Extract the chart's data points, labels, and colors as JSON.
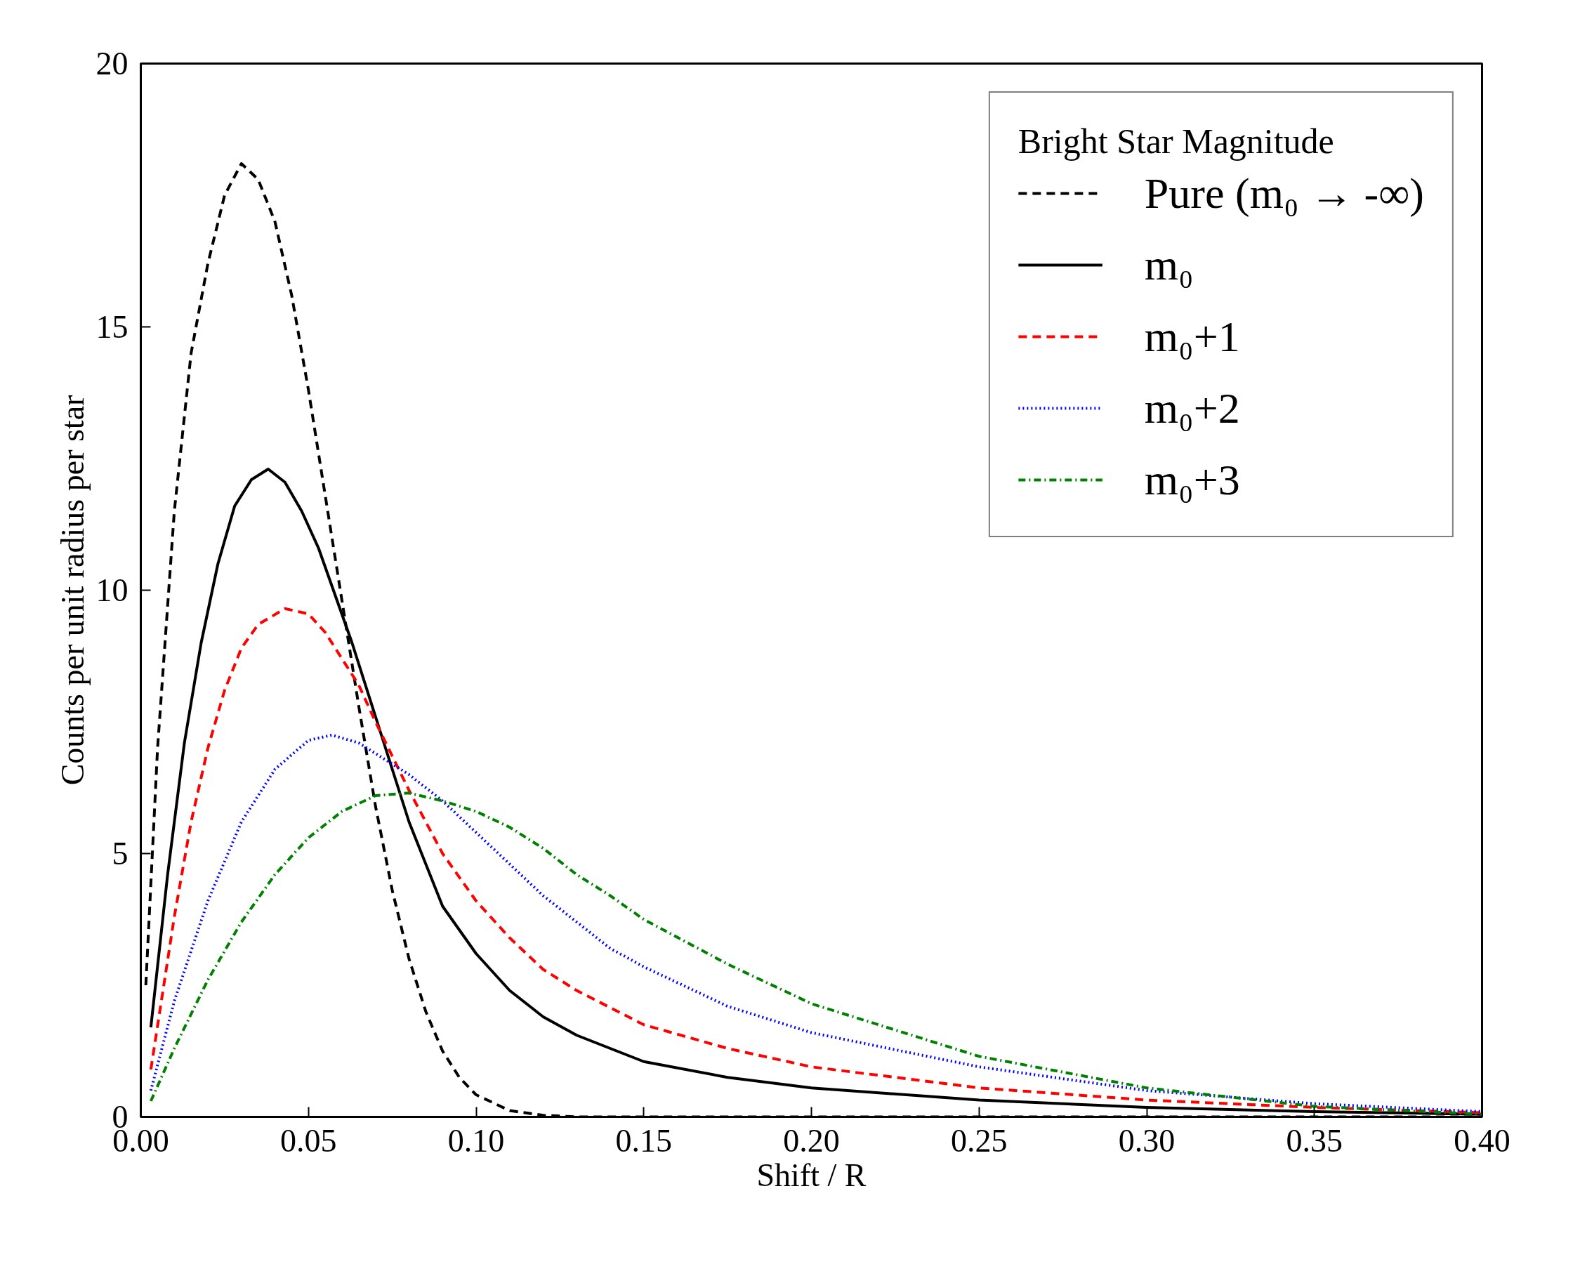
{
  "chart_data": {
    "type": "line",
    "xlabel": "Shift / R",
    "ylabel": "Counts per unit radius per star",
    "legend_title": "Bright Star Magnitude",
    "legend": "top right",
    "grid": false,
    "xlim": [
      0,
      0.4
    ],
    "ylim": [
      0,
      20
    ],
    "xticks": [
      {
        "value": 0,
        "label": "0.00"
      },
      {
        "value": 0.05,
        "label": "0.05"
      },
      {
        "value": 0.1,
        "label": "0.10"
      },
      {
        "value": 0.15,
        "label": "0.15"
      },
      {
        "value": 0.2,
        "label": "0.20"
      },
      {
        "value": 0.25,
        "label": "0.25"
      },
      {
        "value": 0.3,
        "label": "0.30"
      },
      {
        "value": 0.35,
        "label": "0.35"
      },
      {
        "value": 0.4,
        "label": "0.40"
      }
    ],
    "yticks": [
      0,
      5,
      10,
      15,
      20
    ],
    "series": [
      {
        "name": "Pure (m₀ → -∞)",
        "color": "#000000",
        "line_style": "dashed",
        "x": [
          0.0015,
          0.005,
          0.01,
          0.015,
          0.02,
          0.025,
          0.03,
          0.035,
          0.04,
          0.045,
          0.05,
          0.055,
          0.06,
          0.065,
          0.07,
          0.075,
          0.08,
          0.085,
          0.09,
          0.095,
          0.1,
          0.11,
          0.12,
          0.13,
          0.2,
          0.3,
          0.4
        ],
        "values": [
          2.5,
          7,
          11.5,
          14.5,
          16.2,
          17.5,
          18.1,
          17.8,
          17.0,
          15.6,
          13.8,
          11.8,
          9.8,
          7.8,
          5.9,
          4.3,
          3.0,
          2.0,
          1.25,
          0.75,
          0.42,
          0.12,
          0.03,
          0,
          0,
          0,
          0
        ]
      },
      {
        "name": "m₀",
        "color": "#000000",
        "line_style": "solid",
        "x": [
          0.003,
          0.008,
          0.013,
          0.018,
          0.023,
          0.028,
          0.033,
          0.038,
          0.043,
          0.048,
          0.053,
          0.058,
          0.063,
          0.07,
          0.08,
          0.09,
          0.1,
          0.11,
          0.12,
          0.13,
          0.15,
          0.175,
          0.2,
          0.25,
          0.3,
          0.35,
          0.4
        ],
        "values": [
          1.7,
          4.6,
          7.1,
          9.0,
          10.5,
          11.6,
          12.1,
          12.3,
          12.05,
          11.5,
          10.8,
          9.9,
          9.0,
          7.6,
          5.6,
          4.0,
          3.1,
          2.4,
          1.9,
          1.55,
          1.05,
          0.75,
          0.55,
          0.32,
          0.18,
          0.1,
          0.05
        ]
      },
      {
        "name": "m₀+1",
        "color": "#ff0000",
        "line_style": "dashed",
        "x": [
          0.003,
          0.01,
          0.015,
          0.02,
          0.025,
          0.03,
          0.035,
          0.043,
          0.05,
          0.055,
          0.06,
          0.065,
          0.07,
          0.08,
          0.09,
          0.1,
          0.11,
          0.12,
          0.13,
          0.15,
          0.175,
          0.2,
          0.25,
          0.3,
          0.35,
          0.4
        ],
        "values": [
          0.9,
          3.8,
          5.6,
          7.0,
          8.1,
          8.9,
          9.35,
          9.65,
          9.55,
          9.2,
          8.7,
          8.2,
          7.5,
          6.2,
          5.0,
          4.1,
          3.4,
          2.8,
          2.4,
          1.75,
          1.3,
          0.95,
          0.55,
          0.32,
          0.18,
          0.08
        ]
      },
      {
        "name": "m₀+2",
        "color": "#0000ff",
        "line_style": "dotted",
        "x": [
          0.003,
          0.01,
          0.02,
          0.03,
          0.04,
          0.05,
          0.057,
          0.065,
          0.07,
          0.08,
          0.09,
          0.1,
          0.11,
          0.12,
          0.13,
          0.14,
          0.15,
          0.175,
          0.2,
          0.25,
          0.3,
          0.35,
          0.4
        ],
        "values": [
          0.5,
          2.2,
          4.1,
          5.6,
          6.6,
          7.15,
          7.25,
          7.1,
          6.9,
          6.5,
          6.0,
          5.4,
          4.8,
          4.2,
          3.7,
          3.2,
          2.85,
          2.1,
          1.6,
          0.95,
          0.5,
          0.25,
          0.1
        ]
      },
      {
        "name": "m₀+3",
        "color": "#008000",
        "line_style": "dashdot",
        "x": [
          0.003,
          0.01,
          0.02,
          0.03,
          0.04,
          0.05,
          0.06,
          0.07,
          0.08,
          0.09,
          0.1,
          0.11,
          0.12,
          0.13,
          0.14,
          0.15,
          0.175,
          0.2,
          0.25,
          0.3,
          0.35,
          0.4
        ],
        "values": [
          0.3,
          1.3,
          2.6,
          3.7,
          4.6,
          5.3,
          5.8,
          6.1,
          6.15,
          6.0,
          5.8,
          5.5,
          5.1,
          4.6,
          4.2,
          3.75,
          2.9,
          2.15,
          1.15,
          0.55,
          0.2,
          0.05
        ]
      }
    ]
  }
}
